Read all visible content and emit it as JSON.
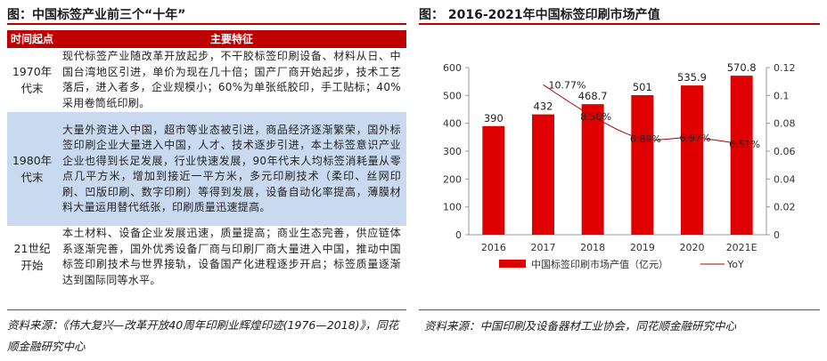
{
  "left_panel": {
    "title": "图：中国标签产业前三个“十年”",
    "headers": {
      "period": "时间起点",
      "feature": "主要特征"
    },
    "rows": [
      {
        "period": "1970年代末",
        "feature": "现代标签产业随改革开放起步，不干胶标签印刷设备、材料从日、中国台湾地区引进，单价为现在几十倍；国产厂商开始起步，技术工艺落后，进入者多，企业规模小；60%为单张纸胶印，手工贴标；40%采用卷筒纸印刷。"
      },
      {
        "period": "1980年代末",
        "feature": "大量外资进入中国，超市等业态被引进，商品经济逐渐繁荣，国外标签印刷企业大量进入中国，人才、技术逐步引进，本土标签意识产业企业也得到长足发展，行业快速发展，90年代末人均标签消耗量从零点几平方米，增加到接近一平方米，多元印刷技术（柔印、丝网印刷、凹版印刷、数字印刷）等得到发展，设备自动化率提高，薄膜材料大量运用替代纸张，印刷质量迅速提高。"
      },
      {
        "period": "21世纪开始",
        "feature": "本土材料、设备企业发展迅速，质量提高；商业生态完善，供应链体系逐渐完善，国外优秀设备厂商与印刷厂商大量进入中国，推动中国标签印刷技术与世界接轨，设备国产化进程逐步开启；标签质量逐渐达到国际同等水平。"
      }
    ],
    "source": "资料来源：《伟大复兴—改革开放40周年印刷业辉煌印迹(1976—2018)》，同花顺金融研究中心"
  },
  "right_panel": {
    "title": "图：  2016-2021年中国标签印刷市场产值",
    "source": "资料来源：中国印刷及设备器材工业协会，同花顺金融研究中心"
  },
  "colors": {
    "accent_red": "#c00000",
    "bar_red": "#e00000",
    "highlight_blue": "#c9daf0"
  },
  "chart_data": {
    "type": "bar",
    "categories": [
      "2016",
      "2017",
      "2018",
      "2019",
      "2020",
      "2021E"
    ],
    "series": [
      {
        "name": "中国标签印刷市场产值（亿元）",
        "type": "bar",
        "values": [
          390,
          432,
          468.7,
          501,
          535.9,
          570.8
        ],
        "labels": [
          "390",
          "432",
          "468.7",
          "501",
          "535.9",
          "570.8"
        ]
      },
      {
        "name": "YoY",
        "type": "line",
        "axis": "right",
        "values": [
          null,
          0.1077,
          0.085,
          0.0689,
          0.0697,
          0.0651
        ],
        "labels": [
          "",
          "10.77%",
          "8.50%",
          "6.89%",
          "6.97%",
          "6.51%"
        ]
      }
    ],
    "y_left": {
      "ticks": [
        "0",
        "100",
        "200",
        "300",
        "400",
        "500",
        "600"
      ],
      "lim": [
        0,
        600
      ]
    },
    "y_right": {
      "ticks": [
        "0",
        "0.02",
        "0.04",
        "0.06",
        "0.08",
        "0.1",
        "0.12"
      ],
      "lim": [
        0,
        0.12
      ]
    },
    "legend_position": "bottom",
    "grid": false
  }
}
